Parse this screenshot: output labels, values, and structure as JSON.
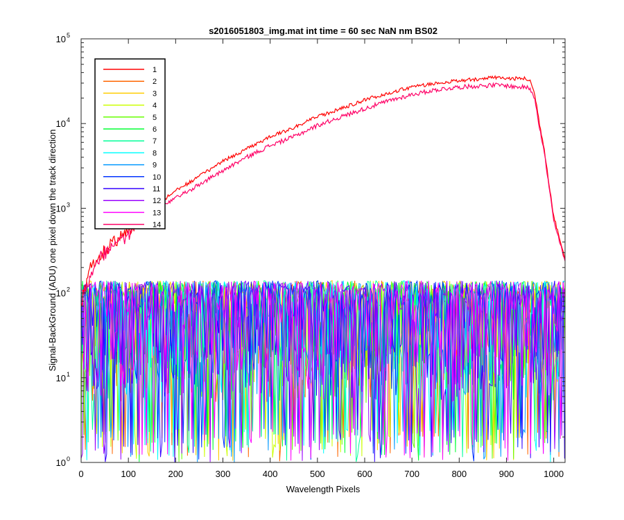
{
  "chart_data": {
    "type": "line",
    "title": "s2016051803_img.mat int time = 60 sec  NaN nm BS02",
    "xlabel": "Wavelength Pixels",
    "ylabel": "Signal-BackGround (ADU) one pixel down the track direction",
    "xlim": [
      0,
      1024
    ],
    "ylim": [
      1,
      100000
    ],
    "yscale": "log",
    "grid": false,
    "legend_position": "top-left",
    "xticks": [
      0,
      100,
      200,
      300,
      400,
      500,
      600,
      700,
      800,
      900,
      1000
    ],
    "yticks": [
      {
        "base": "10",
        "exp": "0",
        "value": 1
      },
      {
        "base": "10",
        "exp": "1",
        "value": 10
      },
      {
        "base": "10",
        "exp": "2",
        "value": 100
      },
      {
        "base": "10",
        "exp": "3",
        "value": 1000
      },
      {
        "base": "10",
        "exp": "4",
        "value": 10000
      },
      {
        "base": "10",
        "exp": "5",
        "value": 100000
      }
    ],
    "x": [
      0,
      10,
      20,
      30,
      50,
      100,
      150,
      200,
      250,
      300,
      350,
      400,
      450,
      500,
      550,
      600,
      650,
      700,
      750,
      800,
      850,
      880,
      900,
      920,
      940,
      950,
      960,
      970,
      980,
      990,
      1000,
      1010,
      1020,
      1024
    ],
    "series": [
      {
        "name": "1",
        "color": "#ff0000",
        "kind": "signal",
        "noise": 0.05,
        "values": [
          80,
          120,
          200,
          250,
          320,
          560,
          1000,
          1600,
          2400,
          3600,
          5000,
          7000,
          9000,
          12000,
          15000,
          19000,
          23000,
          27000,
          30000,
          32000,
          34000,
          35000,
          34000,
          34000,
          34000,
          32000,
          22000,
          10000,
          5000,
          2000,
          800,
          500,
          300,
          250
        ]
      },
      {
        "name": "2",
        "color": "#ff6600",
        "kind": "noise"
      },
      {
        "name": "3",
        "color": "#ffcc00",
        "kind": "noise"
      },
      {
        "name": "4",
        "color": "#ccff00",
        "kind": "noise"
      },
      {
        "name": "5",
        "color": "#66ff00",
        "kind": "noise"
      },
      {
        "name": "6",
        "color": "#00ff33",
        "kind": "noise"
      },
      {
        "name": "7",
        "color": "#00ff99",
        "kind": "noise"
      },
      {
        "name": "8",
        "color": "#00ffff",
        "kind": "noise"
      },
      {
        "name": "9",
        "color": "#0099ff",
        "kind": "noise"
      },
      {
        "name": "10",
        "color": "#0033ff",
        "kind": "noise"
      },
      {
        "name": "11",
        "color": "#3300ff",
        "kind": "noise"
      },
      {
        "name": "12",
        "color": "#9900ff",
        "kind": "noise"
      },
      {
        "name": "13",
        "color": "#ff00ff",
        "kind": "noise"
      },
      {
        "name": "14",
        "color": "#ff0066",
        "kind": "signal",
        "noise": 0.06,
        "values": [
          80,
          110,
          180,
          230,
          300,
          520,
          900,
          1300,
          1900,
          2800,
          4000,
          5500,
          7000,
          9500,
          12000,
          15000,
          18500,
          22000,
          25000,
          27000,
          28000,
          28500,
          28000,
          27000,
          27000,
          26000,
          20000,
          9000,
          4500,
          1800,
          700,
          450,
          280,
          230
        ]
      }
    ]
  }
}
